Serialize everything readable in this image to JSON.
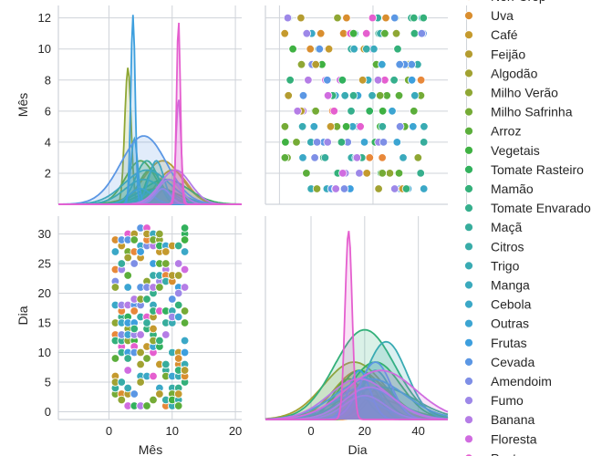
{
  "chart_data": {
    "type": "pairplot",
    "variables": [
      "Mês",
      "Dia"
    ],
    "panels": {
      "mes_mes": {
        "type": "kde",
        "xlim": [
          -8,
          21
        ],
        "ylim": [
          0,
          12.8
        ],
        "yticks": [
          2,
          4,
          6,
          8,
          10,
          12
        ]
      },
      "mes_dia": {
        "type": "scatter",
        "xlim": [
          -3,
          36
        ],
        "ylim": [
          0,
          12.8
        ]
      },
      "dia_mes": {
        "type": "scatter",
        "xlim": [
          -8,
          21
        ],
        "ylim": [
          -1.3,
          33
        ]
      },
      "dia_dia": {
        "type": "kde",
        "xlim": [
          -17,
          51
        ],
        "ylim": [
          0,
          0.17
        ]
      }
    },
    "axes": {
      "mes": {
        "label": "Mês",
        "ticks": [
          0,
          10,
          20
        ],
        "yticks": [
          2,
          4,
          6,
          8,
          10,
          12
        ]
      },
      "dia": {
        "label": "Dia",
        "ticks": [
          0,
          20,
          40
        ],
        "yticks": [
          0,
          5,
          10,
          15,
          20,
          25,
          30
        ]
      }
    },
    "legend": {
      "placement": "right",
      "first_entry_partial": "Non-Crop",
      "last_entry_partial": "Pastagem"
    },
    "series": [
      {
        "name": "Non-Crop",
        "color": "#e8883a",
        "mes_peak": 9.0,
        "dia_peak": 24
      },
      {
        "name": "Uva",
        "color": "#d98e2f",
        "mes_peak": 9.5,
        "dia_peak": 26
      },
      {
        "name": "Café",
        "color": "#c59a2e",
        "mes_peak": 10.0,
        "dia_peak": 22
      },
      {
        "name": "Feijão",
        "color": "#b49c30",
        "mes_peak": 8.5,
        "dia_peak": 18
      },
      {
        "name": "Algodão",
        "color": "#a2a232",
        "mes_peak": 7.5,
        "dia_peak": 16
      },
      {
        "name": "Milho Verão",
        "color": "#8fa734",
        "mes_peak": 3.0,
        "dia_peak": 20
      },
      {
        "name": "Milho Safrinha",
        "color": "#75ab36",
        "mes_peak": 6.5,
        "dia_peak": 22
      },
      {
        "name": "Arroz",
        "color": "#5bae3b",
        "mes_peak": 5.0,
        "dia_peak": 14
      },
      {
        "name": "Vegetais",
        "color": "#3fb142",
        "mes_peak": 8.0,
        "dia_peak": 18
      },
      {
        "name": "Tomate Rasteiro",
        "color": "#32b15d",
        "mes_peak": 9.0,
        "dia_peak": 24
      },
      {
        "name": "Mamão",
        "color": "#34b07a",
        "mes_peak": 7.0,
        "dia_peak": 20
      },
      {
        "name": "Tomate Envarado",
        "color": "#36af8d",
        "mes_peak": 6.0,
        "dia_peak": 26
      },
      {
        "name": "Maçã",
        "color": "#37ad9c",
        "mes_peak": 8.0,
        "dia_peak": 22
      },
      {
        "name": "Citros",
        "color": "#38aca8",
        "mes_peak": 5.5,
        "dia_peak": 24
      },
      {
        "name": "Trigo",
        "color": "#39abb3",
        "mes_peak": 6.0,
        "dia_peak": 28
      },
      {
        "name": "Manga",
        "color": "#3aaabd",
        "mes_peak": 7.5,
        "dia_peak": 16
      },
      {
        "name": "Cebola",
        "color": "#3ba8c7",
        "mes_peak": 5.0,
        "dia_peak": 20
      },
      {
        "name": "Outras",
        "color": "#3ca5d2",
        "mes_peak": 4.0,
        "dia_peak": 22
      },
      {
        "name": "Frutas",
        "color": "#3d9fde",
        "mes_peak": 3.8,
        "dia_peak": 18
      },
      {
        "name": "Cevada",
        "color": "#5b97e4",
        "mes_peak": 5.5,
        "dia_peak": 24
      },
      {
        "name": "Amendoim",
        "color": "#7e8fe6",
        "mes_peak": 8.5,
        "dia_peak": 20
      },
      {
        "name": "Fumo",
        "color": "#9d88e8",
        "mes_peak": 9.5,
        "dia_peak": 22
      },
      {
        "name": "Banana",
        "color": "#b57de6",
        "mes_peak": 10.5,
        "dia_peak": 18
      },
      {
        "name": "Floresta",
        "color": "#d06ce0",
        "mes_peak": 11.0,
        "dia_peak": 26
      },
      {
        "name": "Pastagem",
        "color": "#e55fcf",
        "mes_peak": 11.0,
        "dia_peak": 14
      }
    ]
  }
}
